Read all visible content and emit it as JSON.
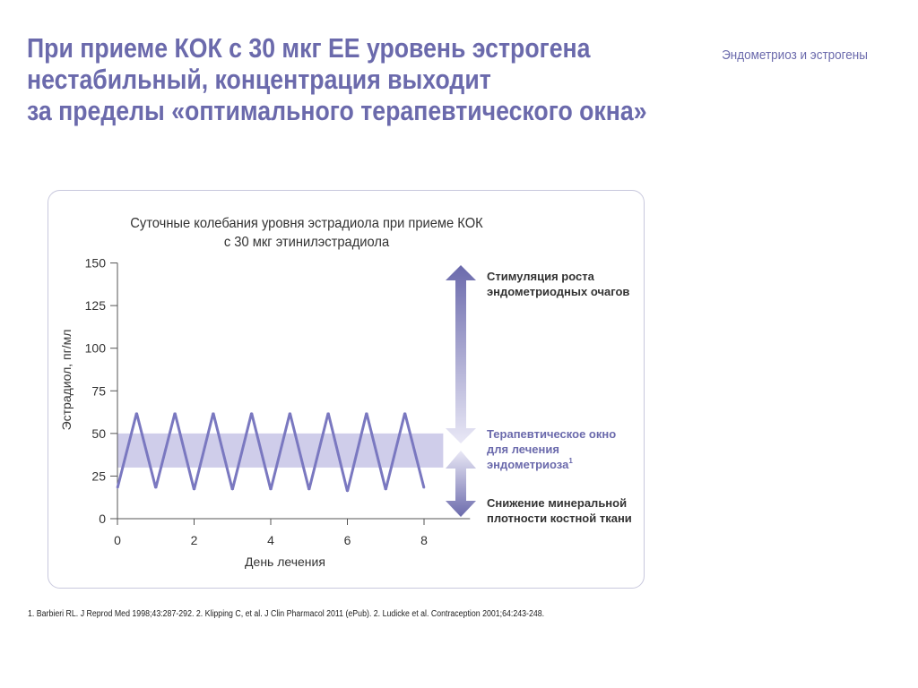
{
  "slide": {
    "title_lines": [
      "При приеме КОК с 30 мкг ЕЕ уровень эстрогена",
      "нестабильный, концентрация выходит",
      "за пределы «оптимального терапевтического окна»"
    ],
    "section": "Эндометриоз и эстрогены",
    "footnote": "1. Barbieri RL. J Reprod Med 1998;43:287-292. 2. Klipping C, et al. J Clin Pharmacol 2011 (ePub). 2. Ludicke et al. Contraception 2001;64:243-248."
  },
  "colors": {
    "accent": "#6b6aac",
    "line": "#7a78c0",
    "band": "#cfcdea",
    "text": "#333333"
  },
  "chart_data": {
    "type": "line",
    "title_lines": [
      "Суточные колебания уровня эстрадиола при приеме КОК",
      "с 30 мкг этинилэстрадиола"
    ],
    "xlabel": "День лечения",
    "ylabel": "Эстрадиол, пг/мл",
    "xlim": [
      0,
      9.2
    ],
    "ylim": [
      0,
      150
    ],
    "xticks": [
      0,
      2,
      4,
      6,
      8
    ],
    "yticks": [
      0,
      25,
      50,
      75,
      100,
      125,
      150
    ],
    "grid": false,
    "series": [
      {
        "x": [
          0,
          0.5,
          1,
          1.5,
          2,
          2.5,
          3,
          3.5,
          4,
          4.5,
          5,
          5.5,
          6,
          6.5,
          7,
          7.5,
          8
        ],
        "y": [
          18,
          62,
          18,
          62,
          17,
          62,
          17,
          62,
          17,
          62,
          17,
          62,
          16,
          62,
          17,
          62,
          18
        ]
      }
    ],
    "therapeutic_window": {
      "y_range": [
        30,
        50
      ],
      "x_range": [
        0,
        8.5
      ]
    },
    "annotations": {
      "upper_lines": [
        "Стимуляция роста",
        "эндометриодных очагов"
      ],
      "middle_lines": [
        "Терапевтическое окно",
        "для лечения",
        "эндометриоза"
      ],
      "middle_sup": "1",
      "lower_lines": [
        "Снижение минеральной",
        "плотности костной ткани"
      ]
    }
  }
}
